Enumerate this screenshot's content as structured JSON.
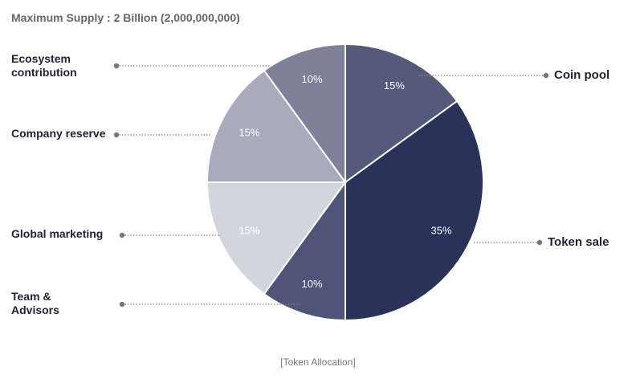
{
  "chart_data": {
    "type": "pie",
    "title": "Maximum Supply : 2 Billion (2,000,000,000)",
    "caption": "[Token Allocation]",
    "categories": [
      "Coin pool",
      "Token sale",
      "Team & Advisors",
      "Global marketing",
      "Company reserve",
      "Ecosystem contribution"
    ],
    "values": [
      15,
      35,
      10,
      15,
      15,
      10
    ],
    "value_labels": [
      "15%",
      "35%",
      "10%",
      "15%",
      "15%",
      "10%"
    ],
    "colors": [
      "#535a7a",
      "#2b3259",
      "#4e5578",
      "#d3d5dd",
      "#a9abbd",
      "#7e8199"
    ]
  }
}
